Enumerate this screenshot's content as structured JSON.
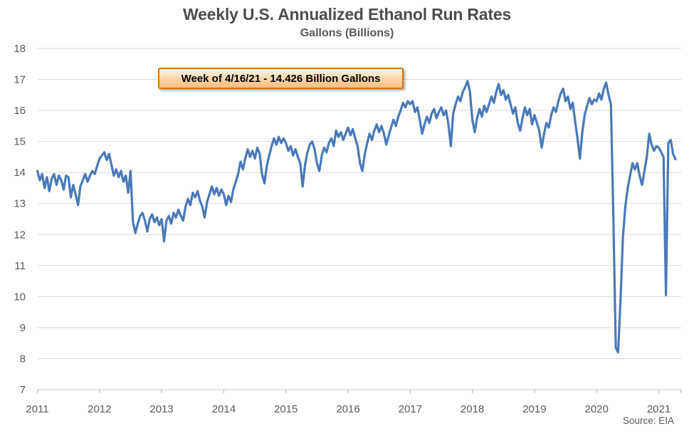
{
  "title": "Weekly U.S. Annualized Ethanol Run Rates",
  "subtitle": "Gallons (Billions)",
  "source": "Source: EIA",
  "annotation": {
    "label": "Week of 4/16/21 - 14.426 Billion Gallons"
  },
  "colors": {
    "line": "#4A79B8",
    "gridline": "#D9D9D9",
    "axis_line": "#D3D3D3",
    "tick_mark": "#BFBFBF",
    "title_text": "#4D4D4D",
    "axis_text": "#595959",
    "annotation_border": "#D9730D",
    "annotation_fill_top": "#FEF6EE",
    "annotation_fill_bottom": "#F9BE83"
  },
  "chart_data": {
    "type": "line",
    "title": "Weekly U.S. Annualized Ethanol Run Rates",
    "ylabel": "Gallons (Billions)",
    "xlabel": "",
    "legend": "none",
    "grid": "horizontal",
    "ylim": [
      7,
      18
    ],
    "y_ticks": [
      7,
      8,
      9,
      10,
      11,
      12,
      13,
      14,
      15,
      16,
      17,
      18
    ],
    "x_tick_labels": [
      "2011",
      "2012",
      "2013",
      "2014",
      "2015",
      "2016",
      "2017",
      "2018",
      "2019",
      "2020",
      "2021"
    ],
    "x_start_year": 2011,
    "points_per_year": 26,
    "highlighted_point": {
      "date": "4/16/21",
      "value": 14.426
    },
    "values": [
      14.05,
      13.75,
      13.95,
      13.5,
      13.85,
      13.4,
      13.8,
      13.95,
      13.6,
      13.9,
      13.75,
      13.45,
      13.9,
      13.85,
      13.2,
      13.6,
      13.3,
      12.95,
      13.55,
      13.75,
      13.95,
      13.7,
      13.9,
      14.05,
      13.95,
      14.2,
      14.45,
      14.55,
      14.65,
      14.4,
      14.6,
      14.25,
      13.9,
      14.1,
      13.85,
      14.05,
      13.7,
      13.9,
      13.35,
      14.05,
      12.4,
      12.05,
      12.35,
      12.6,
      12.7,
      12.45,
      12.1,
      12.5,
      12.65,
      12.4,
      12.55,
      12.3,
      12.5,
      11.78,
      12.45,
      12.6,
      12.35,
      12.7,
      12.55,
      12.8,
      12.6,
      12.45,
      12.9,
      13.15,
      12.95,
      13.35,
      13.2,
      13.4,
      13.1,
      12.9,
      12.55,
      13.05,
      13.3,
      13.55,
      13.3,
      13.5,
      13.25,
      13.45,
      13.3,
      12.95,
      13.25,
      13.05,
      13.45,
      13.7,
      13.95,
      14.35,
      14.1,
      14.45,
      14.75,
      14.5,
      14.7,
      14.45,
      14.8,
      14.6,
      13.95,
      13.65,
      14.2,
      14.55,
      14.85,
      15.1,
      14.9,
      15.15,
      14.95,
      15.1,
      14.95,
      14.7,
      14.85,
      14.55,
      14.75,
      14.5,
      14.3,
      13.55,
      14.25,
      14.65,
      14.9,
      15.0,
      14.75,
      14.3,
      14.05,
      14.55,
      14.8,
      14.65,
      14.95,
      15.1,
      14.85,
      15.35,
      15.15,
      15.3,
      15.05,
      15.25,
      15.45,
      15.2,
      15.4,
      15.1,
      14.85,
      14.3,
      14.05,
      14.6,
      14.95,
      15.25,
      15.05,
      15.35,
      15.55,
      15.3,
      15.5,
      15.25,
      14.9,
      15.2,
      15.45,
      15.7,
      15.5,
      15.8,
      16.0,
      16.25,
      16.1,
      16.3,
      16.2,
      16.3,
      15.95,
      16.1,
      15.7,
      15.25,
      15.55,
      15.8,
      15.6,
      15.9,
      16.05,
      15.75,
      15.95,
      16.1,
      15.85,
      16.0,
      15.55,
      14.85,
      15.9,
      16.2,
      16.45,
      16.3,
      16.6,
      16.75,
      16.95,
      16.6,
      15.7,
      15.3,
      15.75,
      16.05,
      15.8,
      16.15,
      15.95,
      16.2,
      16.45,
      16.25,
      16.6,
      16.85,
      16.5,
      16.65,
      16.35,
      16.5,
      16.2,
      15.9,
      16.1,
      15.6,
      15.35,
      15.75,
      16.1,
      15.85,
      16.05,
      15.55,
      15.85,
      15.6,
      15.35,
      14.8,
      15.25,
      15.6,
      15.45,
      15.85,
      16.1,
      15.95,
      16.3,
      16.55,
      16.7,
      16.3,
      16.45,
      16.05,
      16.25,
      15.65,
      15.1,
      14.45,
      15.3,
      15.85,
      16.15,
      16.4,
      16.2,
      16.35,
      16.3,
      16.55,
      16.35,
      16.7,
      16.9,
      16.5,
      16.2,
      12.6,
      8.35,
      8.2,
      9.9,
      11.9,
      12.9,
      13.5,
      13.9,
      14.3,
      14.1,
      14.3,
      13.9,
      13.6,
      14.05,
      14.5,
      15.25,
      14.9,
      14.7,
      14.85,
      14.8,
      14.65,
      14.5,
      10.05,
      14.95,
      15.05,
      14.6,
      14.426
    ]
  }
}
